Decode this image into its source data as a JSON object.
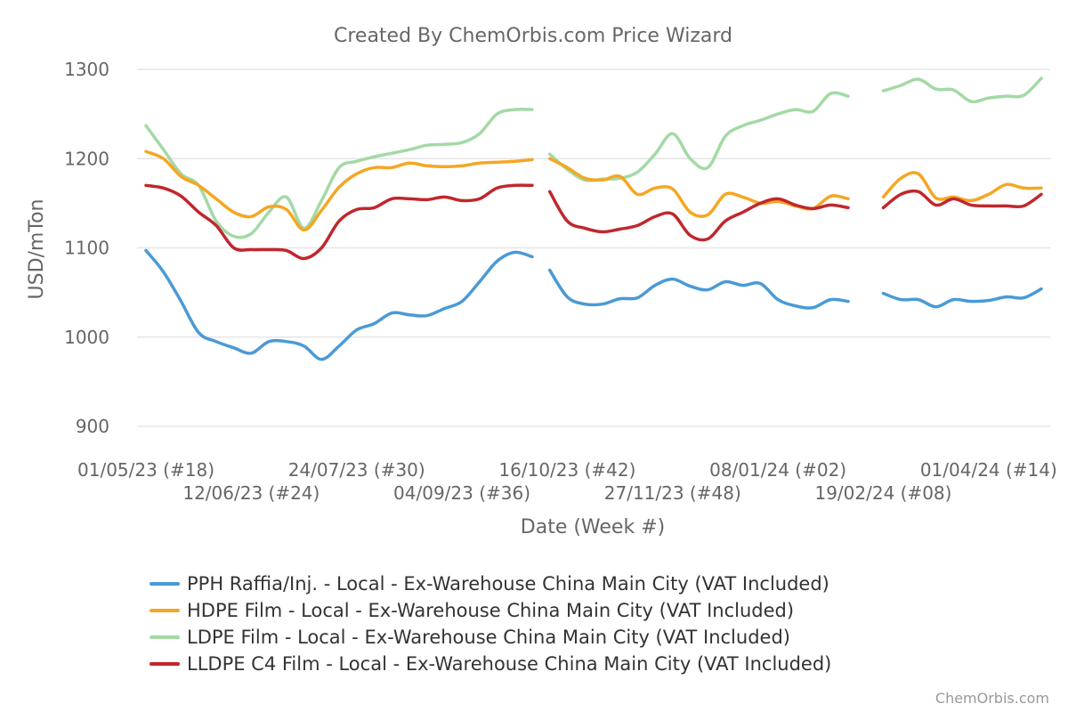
{
  "chart_data": {
    "type": "line",
    "title": "Created By ChemOrbis.com Price Wizard",
    "xlabel": "Date (Week #)",
    "ylabel": "USD/mTon",
    "ylim": [
      900,
      1300
    ],
    "yticks": [
      900,
      1000,
      1100,
      1200,
      1300
    ],
    "grid": true,
    "legend_position": "bottom",
    "credit": "ChemOrbis.com",
    "x_ticks": [
      {
        "week": 0,
        "label": "01/05/23 (#18)"
      },
      {
        "week": 6,
        "label": "12/06/23 (#24)"
      },
      {
        "week": 12,
        "label": "24/07/23 (#30)"
      },
      {
        "week": 18,
        "label": "04/09/23 (#36)"
      },
      {
        "week": 24,
        "label": "16/10/23 (#42)"
      },
      {
        "week": 30,
        "label": "27/11/23 (#48)"
      },
      {
        "week": 36,
        "label": "08/01/24 (#02)"
      },
      {
        "week": 42,
        "label": "19/02/24 (#08)"
      },
      {
        "week": 48,
        "label": "01/04/24 (#14)"
      }
    ],
    "x_range": [
      0,
      51
    ],
    "series": [
      {
        "name": "PPH Raffia/Inj. - Local - Ex-Warehouse China Main City (VAT Included)",
        "color": "#4a9ad6",
        "segments": [
          [
            [
              0,
              1097
            ],
            [
              1,
              1073
            ],
            [
              2,
              1040
            ],
            [
              3,
              1005
            ],
            [
              4,
              995
            ],
            [
              5,
              988
            ],
            [
              6,
              982
            ],
            [
              7,
              995
            ],
            [
              8,
              995
            ],
            [
              9,
              990
            ],
            [
              10,
              975
            ],
            [
              11,
              990
            ],
            [
              12,
              1008
            ],
            [
              13,
              1015
            ],
            [
              14,
              1027
            ],
            [
              15,
              1025
            ],
            [
              16,
              1024
            ],
            [
              17,
              1032
            ],
            [
              18,
              1040
            ],
            [
              19,
              1062
            ],
            [
              20,
              1085
            ],
            [
              21,
              1095
            ],
            [
              22,
              1090
            ]
          ],
          [
            [
              23,
              1075
            ],
            [
              24,
              1045
            ],
            [
              25,
              1037
            ],
            [
              26,
              1037
            ],
            [
              27,
              1043
            ],
            [
              28,
              1044
            ],
            [
              29,
              1058
            ],
            [
              30,
              1065
            ],
            [
              31,
              1057
            ],
            [
              32,
              1053
            ],
            [
              33,
              1062
            ],
            [
              34,
              1058
            ],
            [
              35,
              1060
            ],
            [
              36,
              1042
            ],
            [
              37,
              1035
            ],
            [
              38,
              1033
            ],
            [
              39,
              1042
            ],
            [
              40,
              1040
            ]
          ],
          [
            [
              42,
              1049
            ],
            [
              43,
              1042
            ],
            [
              44,
              1042
            ],
            [
              45,
              1034
            ],
            [
              46,
              1042
            ],
            [
              47,
              1040
            ],
            [
              48,
              1041
            ],
            [
              49,
              1045
            ],
            [
              50,
              1044
            ],
            [
              51,
              1054
            ]
          ]
        ]
      },
      {
        "name": "HDPE Film - Local - Ex-Warehouse China Main City (VAT Included)",
        "color": "#f5a623",
        "segments": [
          [
            [
              0,
              1208
            ],
            [
              1,
              1200
            ],
            [
              2,
              1180
            ],
            [
              3,
              1170
            ],
            [
              4,
              1155
            ],
            [
              5,
              1140
            ],
            [
              6,
              1135
            ],
            [
              7,
              1146
            ],
            [
              8,
              1143
            ],
            [
              9,
              1120
            ],
            [
              10,
              1142
            ],
            [
              11,
              1168
            ],
            [
              12,
              1183
            ],
            [
              13,
              1190
            ],
            [
              14,
              1190
            ],
            [
              15,
              1195
            ],
            [
              16,
              1192
            ],
            [
              17,
              1191
            ],
            [
              18,
              1192
            ],
            [
              19,
              1195
            ],
            [
              20,
              1196
            ],
            [
              21,
              1197
            ],
            [
              22,
              1199
            ]
          ],
          [
            [
              23,
              1200
            ],
            [
              24,
              1190
            ],
            [
              25,
              1178
            ],
            [
              26,
              1176
            ],
            [
              27,
              1180
            ],
            [
              28,
              1160
            ],
            [
              29,
              1167
            ],
            [
              30,
              1166
            ],
            [
              31,
              1140
            ],
            [
              32,
              1137
            ],
            [
              33,
              1160
            ],
            [
              34,
              1157
            ],
            [
              35,
              1150
            ],
            [
              36,
              1152
            ],
            [
              37,
              1147
            ],
            [
              38,
              1144
            ],
            [
              39,
              1158
            ],
            [
              40,
              1155
            ]
          ],
          [
            [
              42,
              1157
            ],
            [
              43,
              1178
            ],
            [
              44,
              1183
            ],
            [
              45,
              1156
            ],
            [
              46,
              1157
            ],
            [
              47,
              1153
            ],
            [
              48,
              1160
            ],
            [
              49,
              1171
            ],
            [
              50,
              1167
            ],
            [
              51,
              1167
            ]
          ]
        ]
      },
      {
        "name": "LDPE Film - Local - Ex-Warehouse China Main City (VAT Included)",
        "color": "#a3d9a5",
        "segments": [
          [
            [
              0,
              1237
            ],
            [
              1,
              1210
            ],
            [
              2,
              1183
            ],
            [
              3,
              1170
            ],
            [
              4,
              1130
            ],
            [
              5,
              1113
            ],
            [
              6,
              1116
            ],
            [
              7,
              1140
            ],
            [
              8,
              1157
            ],
            [
              9,
              1122
            ],
            [
              10,
              1153
            ],
            [
              11,
              1190
            ],
            [
              12,
              1197
            ],
            [
              13,
              1202
            ],
            [
              14,
              1206
            ],
            [
              15,
              1210
            ],
            [
              16,
              1215
            ],
            [
              17,
              1216
            ],
            [
              18,
              1218
            ],
            [
              19,
              1228
            ],
            [
              20,
              1250
            ],
            [
              21,
              1255
            ],
            [
              22,
              1255
            ]
          ],
          [
            [
              23,
              1205
            ],
            [
              24,
              1188
            ],
            [
              25,
              1176
            ],
            [
              26,
              1177
            ],
            [
              27,
              1178
            ],
            [
              28,
              1185
            ],
            [
              29,
              1205
            ],
            [
              30,
              1228
            ],
            [
              31,
              1200
            ],
            [
              32,
              1190
            ],
            [
              33,
              1225
            ],
            [
              34,
              1237
            ],
            [
              35,
              1243
            ],
            [
              36,
              1250
            ],
            [
              37,
              1255
            ],
            [
              38,
              1253
            ],
            [
              39,
              1273
            ],
            [
              40,
              1270
            ]
          ],
          [
            [
              42,
              1276
            ],
            [
              43,
              1282
            ],
            [
              44,
              1289
            ],
            [
              45,
              1278
            ],
            [
              46,
              1277
            ],
            [
              47,
              1264
            ],
            [
              48,
              1268
            ],
            [
              49,
              1270
            ],
            [
              50,
              1271
            ],
            [
              51,
              1290
            ]
          ]
        ]
      },
      {
        "name": "LLDPE C4 Film - Local - Ex-Warehouse China Main City (VAT Included)",
        "color": "#c0272d",
        "segments": [
          [
            [
              0,
              1170
            ],
            [
              1,
              1167
            ],
            [
              2,
              1158
            ],
            [
              3,
              1140
            ],
            [
              4,
              1125
            ],
            [
              5,
              1100
            ],
            [
              6,
              1098
            ],
            [
              7,
              1098
            ],
            [
              8,
              1097
            ],
            [
              9,
              1088
            ],
            [
              10,
              1100
            ],
            [
              11,
              1130
            ],
            [
              12,
              1143
            ],
            [
              13,
              1145
            ],
            [
              14,
              1155
            ],
            [
              15,
              1155
            ],
            [
              16,
              1154
            ],
            [
              17,
              1157
            ],
            [
              18,
              1153
            ],
            [
              19,
              1155
            ],
            [
              20,
              1167
            ],
            [
              21,
              1170
            ],
            [
              22,
              1170
            ]
          ],
          [
            [
              23,
              1163
            ],
            [
              24,
              1130
            ],
            [
              25,
              1122
            ],
            [
              26,
              1118
            ],
            [
              27,
              1121
            ],
            [
              28,
              1125
            ],
            [
              29,
              1135
            ],
            [
              30,
              1138
            ],
            [
              31,
              1114
            ],
            [
              32,
              1110
            ],
            [
              33,
              1130
            ],
            [
              34,
              1140
            ],
            [
              35,
              1150
            ],
            [
              36,
              1155
            ],
            [
              37,
              1148
            ],
            [
              38,
              1144
            ],
            [
              39,
              1148
            ],
            [
              40,
              1145
            ]
          ],
          [
            [
              42,
              1145
            ],
            [
              43,
              1160
            ],
            [
              44,
              1163
            ],
            [
              45,
              1148
            ],
            [
              46,
              1155
            ],
            [
              47,
              1148
            ],
            [
              48,
              1147
            ],
            [
              49,
              1147
            ],
            [
              50,
              1147
            ],
            [
              51,
              1160
            ]
          ]
        ]
      }
    ]
  }
}
